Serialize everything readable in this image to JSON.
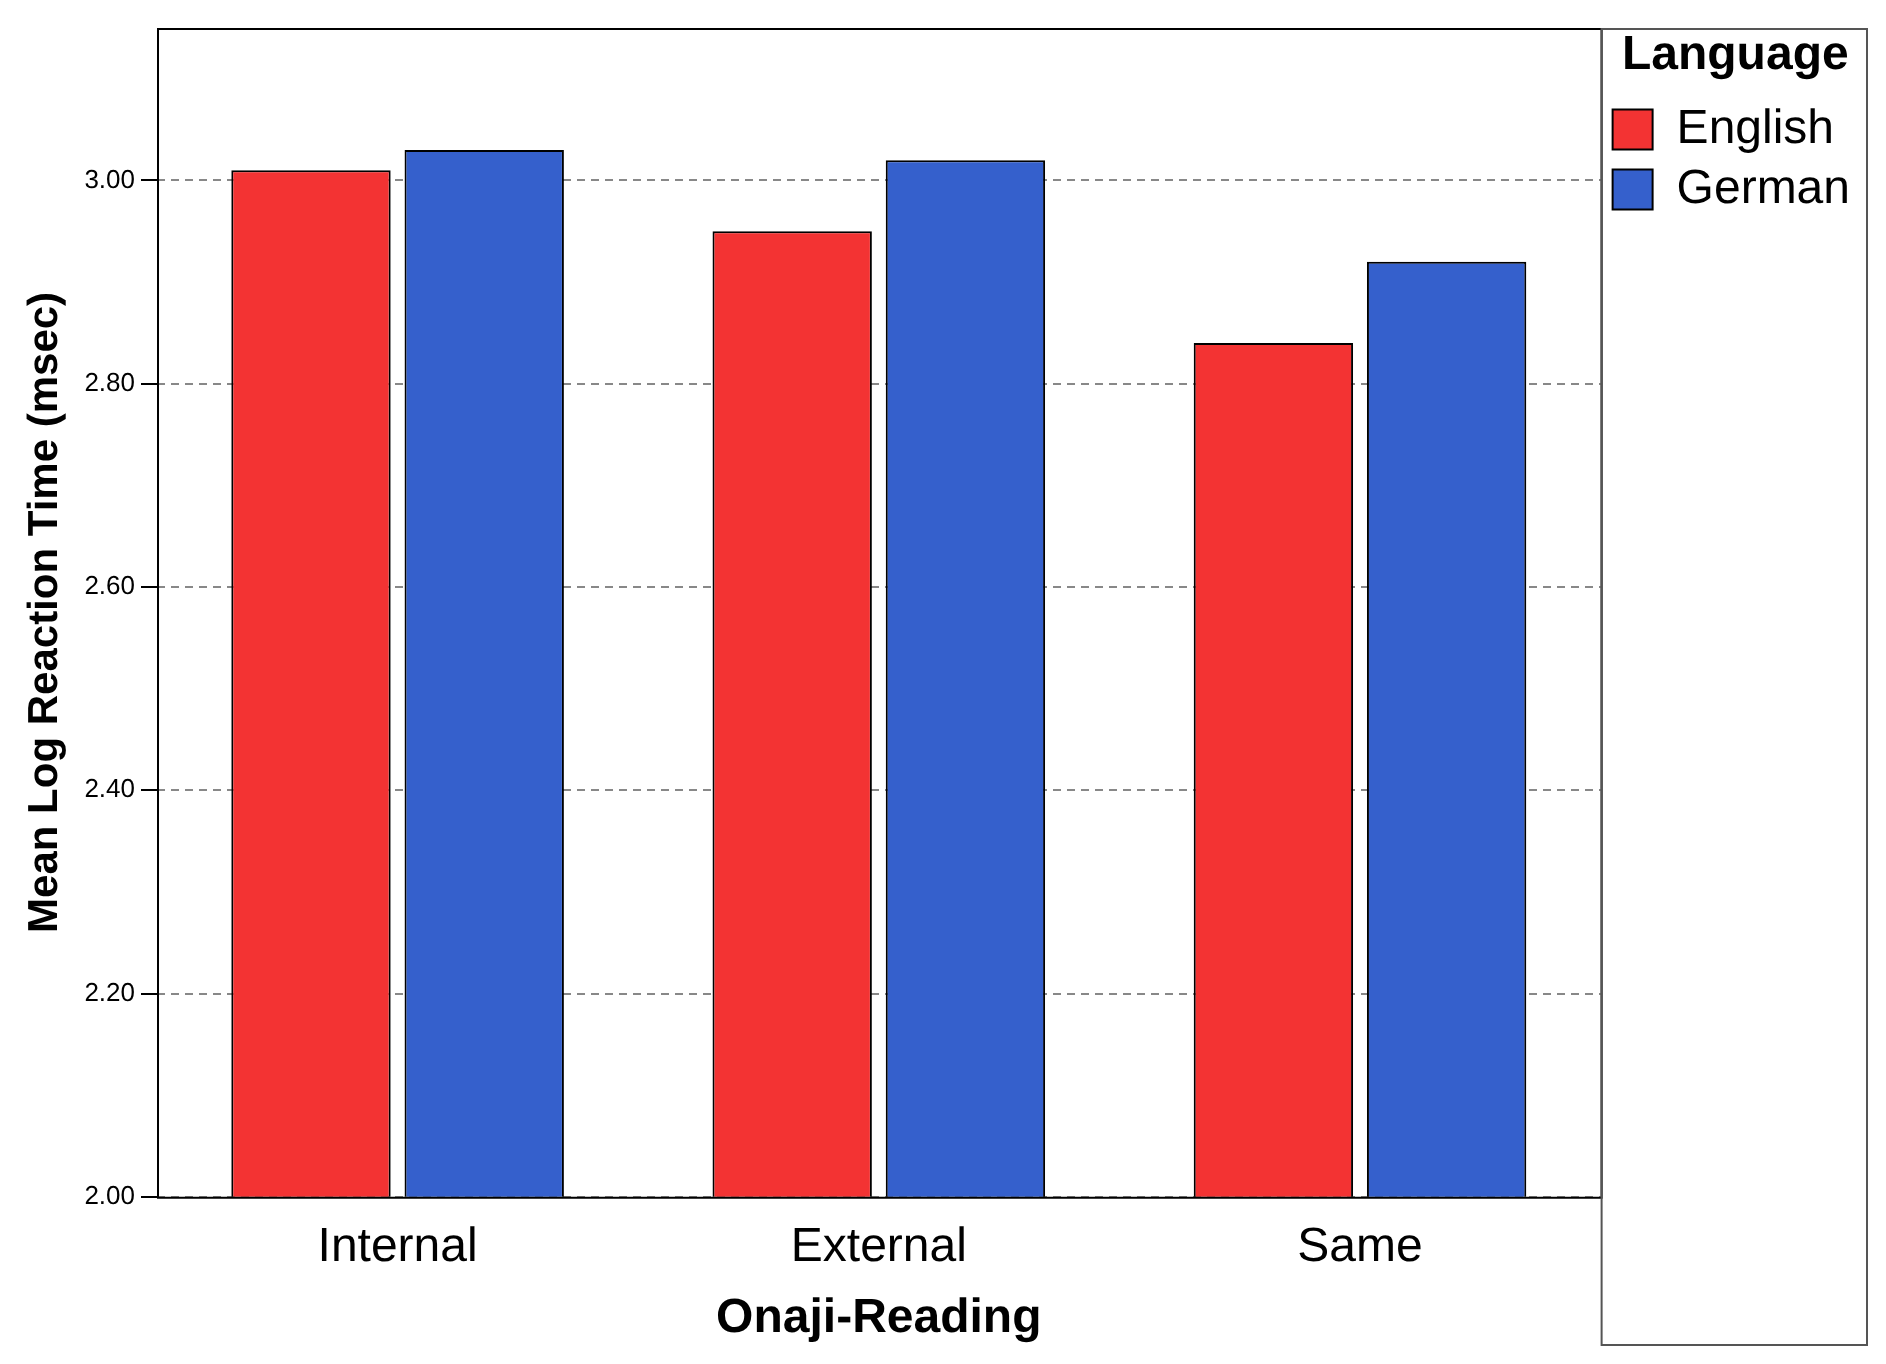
{
  "chart_data": {
    "type": "bar",
    "xlabel": "Onaji-Reading",
    "ylabel": "Mean Log Reaction Time (msec)",
    "legend_title": "Language",
    "categories": [
      "Internal",
      "External",
      "Same"
    ],
    "series": [
      {
        "name": "English",
        "color": "#f33333",
        "values": [
          3.01,
          2.95,
          2.84
        ]
      },
      {
        "name": "German",
        "color": "#3560cc",
        "values": [
          3.03,
          3.02,
          2.92
        ]
      }
    ],
    "ylim": [
      2,
      3.15
    ],
    "yticks": [
      {
        "value": 2,
        "label": "2.00"
      },
      {
        "value": 2.2,
        "label": "2.20"
      },
      {
        "value": 2.4,
        "label": "2.40"
      },
      {
        "value": 2.6,
        "label": "2.60"
      },
      {
        "value": 2.8,
        "label": "2.80"
      },
      {
        "value": 3,
        "label": "3.00"
      }
    ],
    "grid": "y",
    "legend": "top right"
  }
}
